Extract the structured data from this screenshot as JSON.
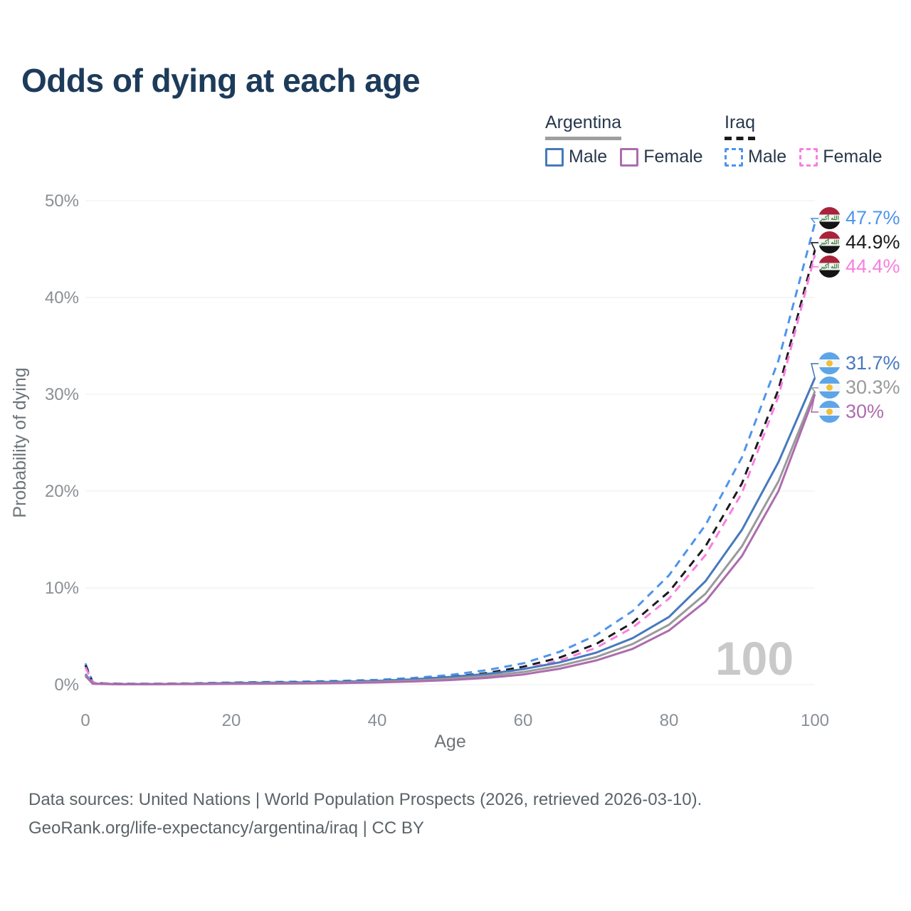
{
  "title": "Odds of dying at each age",
  "legend": {
    "groups": [
      {
        "name": "Argentina",
        "line_color": "#9e9e9e",
        "dashed": false,
        "items": [
          {
            "label": "Male",
            "color": "#4779bd"
          },
          {
            "label": "Female",
            "color": "#ad6cae"
          }
        ]
      },
      {
        "name": "Iraq",
        "line_color": "#1b1b1b",
        "dashed": true,
        "items": [
          {
            "label": "Male",
            "color": "#4e94ec"
          },
          {
            "label": "Female",
            "color": "#f97ee0"
          }
        ]
      }
    ]
  },
  "chart_data": {
    "type": "line",
    "title": "Odds of dying at each age",
    "xlabel": "Age",
    "ylabel": "Probability of dying",
    "y_unit": "percent",
    "xlim": [
      0,
      100
    ],
    "ylim": [
      0,
      50
    ],
    "grid": "horizontal",
    "legend_position": "top-right",
    "watermark": "100",
    "iraq_flag_script": "الله أكبر",
    "x_ticks": [
      {
        "value": 0,
        "label": "0"
      },
      {
        "value": 20,
        "label": "20"
      },
      {
        "value": 40,
        "label": "40"
      },
      {
        "value": 60,
        "label": "60"
      },
      {
        "value": 80,
        "label": "80"
      },
      {
        "value": 100,
        "label": "100"
      }
    ],
    "y_ticks": [
      {
        "value": 0,
        "label": "0%"
      },
      {
        "value": 10,
        "label": "10%"
      },
      {
        "value": 20,
        "label": "20%"
      },
      {
        "value": 30,
        "label": "30%"
      },
      {
        "value": 40,
        "label": "40%"
      },
      {
        "value": 50,
        "label": "50%"
      }
    ],
    "x": [
      0,
      1,
      2,
      5,
      10,
      15,
      20,
      25,
      30,
      35,
      40,
      45,
      50,
      55,
      60,
      65,
      70,
      75,
      80,
      85,
      90,
      95,
      100
    ],
    "series": [
      {
        "name": "Iraq Male",
        "country": "iraq",
        "style": "dashed",
        "color": "#4e94ec",
        "end_label": "47.7%",
        "end_label_color": "#4e94ec",
        "values": [
          2.2,
          0.25,
          0.15,
          0.1,
          0.1,
          0.15,
          0.22,
          0.28,
          0.32,
          0.4,
          0.5,
          0.7,
          1.0,
          1.5,
          2.2,
          3.4,
          5.1,
          7.6,
          11.3,
          16.5,
          23.5,
          33.5,
          47.7
        ]
      },
      {
        "name": "Iraq Total",
        "country": "iraq",
        "style": "dashed",
        "color": "#1b1b1b",
        "end_label": "44.9%",
        "end_label_color": "#1b1b1b",
        "values": [
          2.0,
          0.22,
          0.13,
          0.09,
          0.08,
          0.12,
          0.18,
          0.22,
          0.26,
          0.32,
          0.4,
          0.55,
          0.8,
          1.2,
          1.85,
          2.8,
          4.2,
          6.4,
          9.6,
          14.3,
          20.8,
          30.5,
          44.9
        ]
      },
      {
        "name": "Iraq Female",
        "country": "iraq",
        "style": "dashed",
        "color": "#f97ee0",
        "end_label": "44.4%",
        "end_label_color": "#f97ee0",
        "values": [
          1.8,
          0.2,
          0.12,
          0.08,
          0.07,
          0.1,
          0.14,
          0.17,
          0.2,
          0.26,
          0.33,
          0.48,
          0.7,
          1.05,
          1.6,
          2.5,
          3.8,
          5.9,
          8.9,
          13.4,
          19.8,
          29.8,
          44.4
        ]
      },
      {
        "name": "Argentina Male",
        "country": "argentina",
        "style": "solid",
        "color": "#4779bd",
        "end_label": "31.7%",
        "end_label_color": "#4779bd",
        "values": [
          1.1,
          0.12,
          0.08,
          0.05,
          0.06,
          0.1,
          0.16,
          0.2,
          0.24,
          0.3,
          0.4,
          0.55,
          0.8,
          1.1,
          1.6,
          2.3,
          3.3,
          4.8,
          7.0,
          10.7,
          16.0,
          23.0,
          31.7
        ]
      },
      {
        "name": "Argentina Total",
        "country": "argentina",
        "style": "solid",
        "color": "#9a9a9a",
        "end_label": "30.3%",
        "end_label_color": "#9a9a9a",
        "values": [
          1.0,
          0.11,
          0.07,
          0.05,
          0.05,
          0.08,
          0.11,
          0.14,
          0.17,
          0.22,
          0.3,
          0.43,
          0.62,
          0.9,
          1.3,
          1.95,
          2.85,
          4.2,
          6.2,
          9.4,
          14.3,
          21.0,
          30.3
        ]
      },
      {
        "name": "Argentina Female",
        "country": "argentina",
        "style": "solid",
        "color": "#ad6cae",
        "end_label": "30%",
        "end_label_color": "#ad6cae",
        "values": [
          0.9,
          0.1,
          0.07,
          0.04,
          0.05,
          0.06,
          0.08,
          0.1,
          0.13,
          0.17,
          0.23,
          0.33,
          0.48,
          0.7,
          1.05,
          1.65,
          2.5,
          3.7,
          5.6,
          8.6,
          13.3,
          20.0,
          30.0
        ]
      }
    ]
  },
  "footer": {
    "line1": "Data sources: United Nations | World Population Prospects (2026, retrieved 2026-03-10).",
    "line2": "GeoRank.org/life-expectancy/argentina/iraq | CC BY"
  }
}
